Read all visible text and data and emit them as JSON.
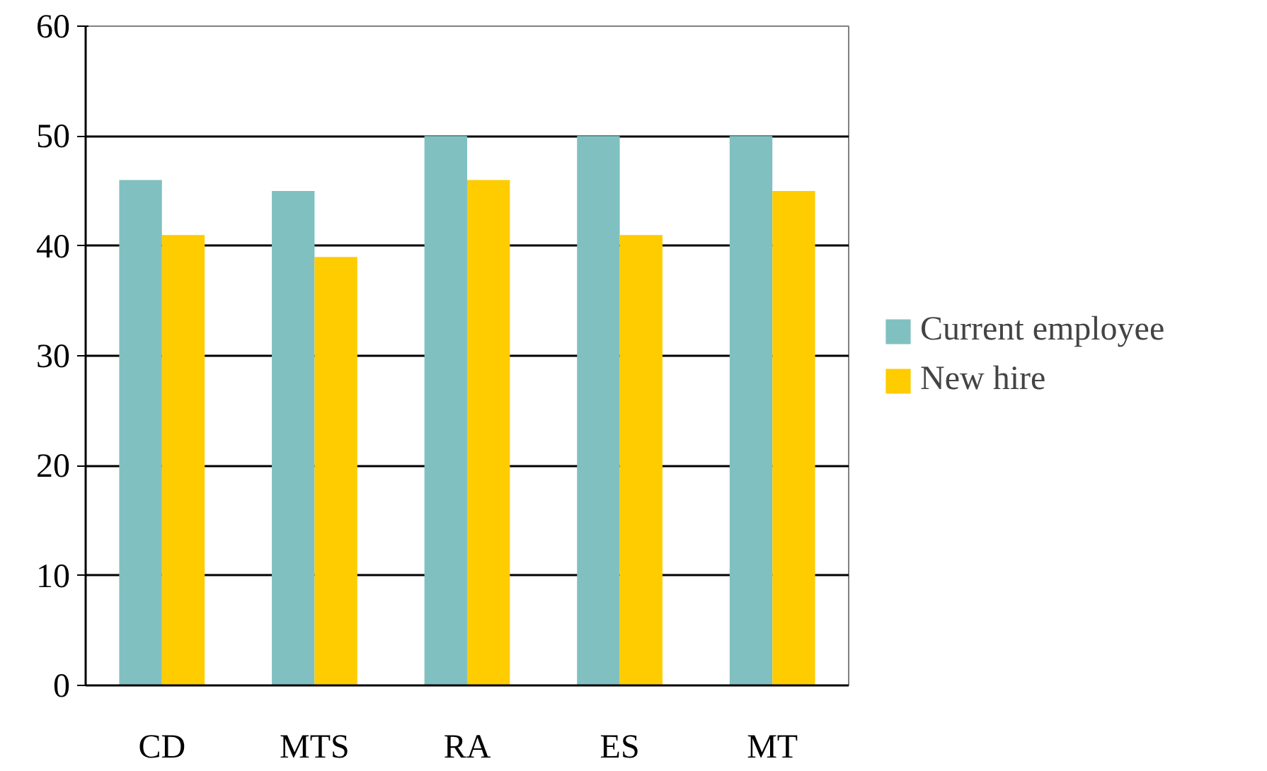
{
  "chart_data": {
    "type": "bar",
    "categories": [
      "CD",
      "MTS",
      "RA",
      "ES",
      "MT"
    ],
    "series": [
      {
        "name": "Current employee",
        "color": "#80c0c0",
        "values": [
          46,
          45,
          50,
          50,
          50
        ]
      },
      {
        "name": "New hire",
        "color": "#ffcc00",
        "values": [
          41,
          39,
          46,
          41,
          45
        ]
      }
    ],
    "ylim": [
      0,
      60
    ],
    "yticks": [
      0,
      10,
      20,
      30,
      40,
      50,
      60
    ],
    "grid": "y",
    "legend": "right"
  }
}
